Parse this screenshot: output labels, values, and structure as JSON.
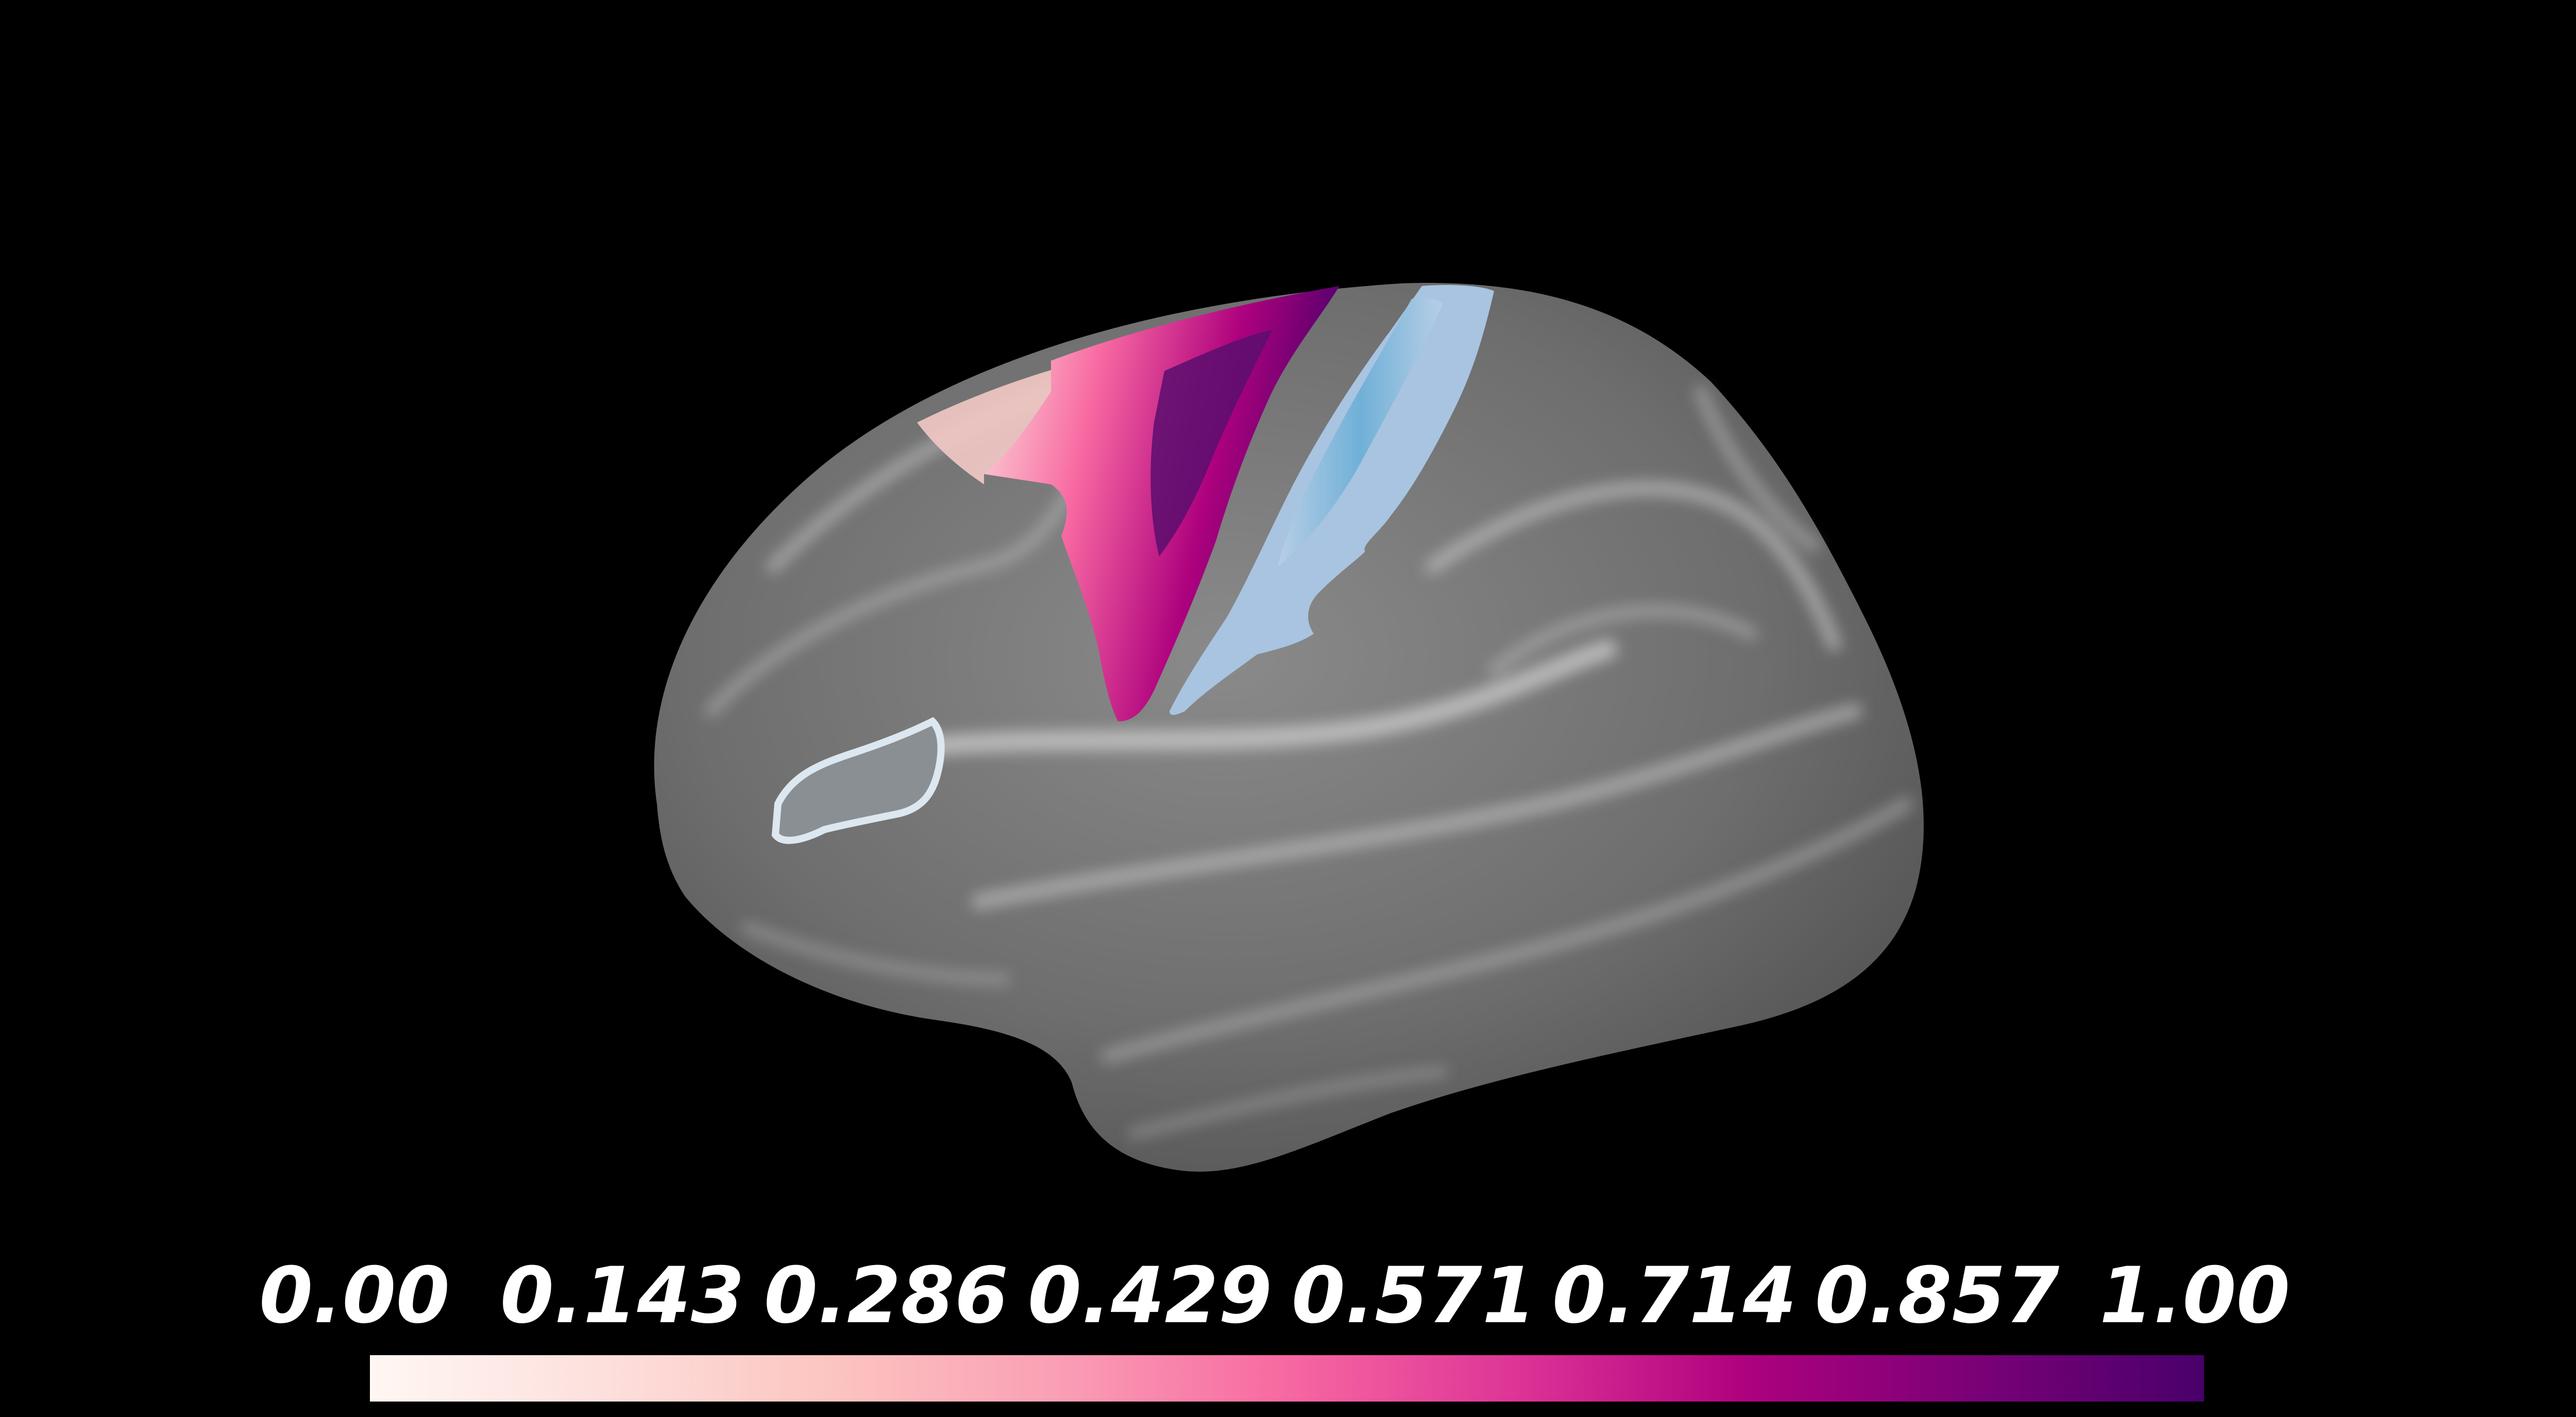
{
  "scene": {
    "background_color": "#000000",
    "surface_color": "#6e6e6e",
    "highlight_color": "#d0d0d0",
    "sulcal_color": "#4a4a4a",
    "regions": [
      {
        "name": "precentral-gradient-region",
        "color_low": "#fde0dd",
        "color_high": "#49006a"
      },
      {
        "name": "postcentral-region",
        "color_fill": "#a8c4e0",
        "color_core": "#6aaed6"
      },
      {
        "name": "inferior-frontal-outline-region",
        "color_outline": "#dce7ef",
        "color_fill": "#8a8f94"
      }
    ]
  },
  "colorbar": {
    "ticks": [
      "0.00",
      "0.143",
      "0.286",
      "0.429",
      "0.571",
      "0.714",
      "0.857",
      "1.00"
    ],
    "colormap": [
      "#fff7f3",
      "#fde0dd",
      "#fcc5c0",
      "#fa9fb5",
      "#f768a1",
      "#dd3497",
      "#ae017e",
      "#7a0177",
      "#49006a"
    ]
  }
}
